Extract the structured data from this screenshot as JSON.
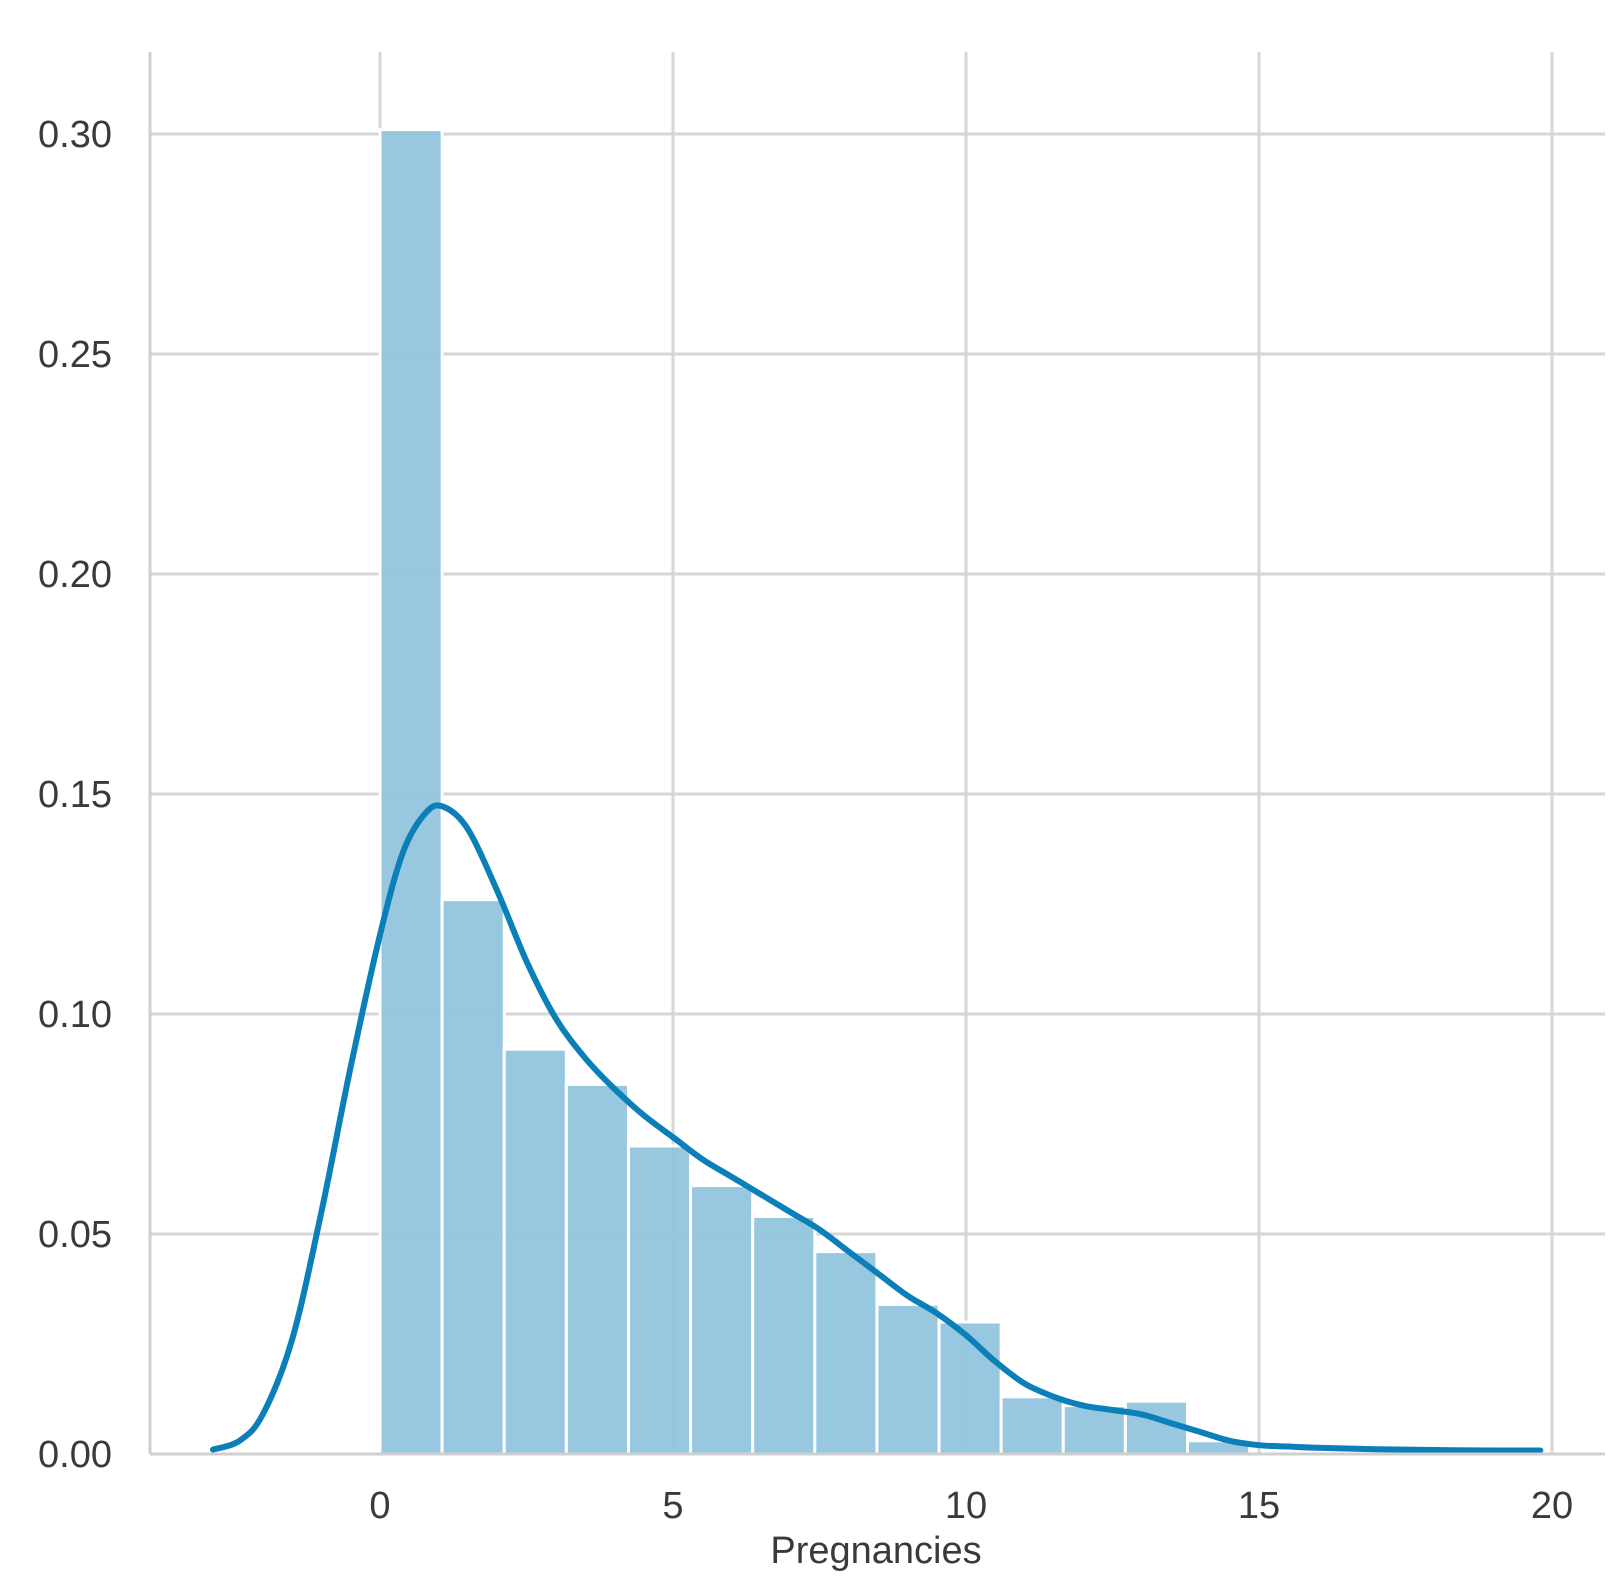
{
  "chart_data": {
    "type": "bar",
    "title": "",
    "xlabel": "Pregnancies",
    "ylabel": "",
    "xlim": [
      -3.0,
      20.3
    ],
    "ylim": [
      0.0,
      0.317
    ],
    "x_ticks": [
      0,
      5,
      10,
      15,
      20
    ],
    "x_tick_labels": [
      "0",
      "5",
      "10",
      "15",
      "20"
    ],
    "y_ticks": [
      0.0,
      0.05,
      0.1,
      0.15,
      0.2,
      0.25,
      0.3
    ],
    "y_tick_labels": [
      "0.00",
      "0.05",
      "0.10",
      "0.15",
      "0.20",
      "0.25",
      "0.30"
    ],
    "grid": true,
    "bar_color": "#92c5de",
    "line_color": "#0a7fb8",
    "series": [
      {
        "kind": "histogram",
        "bins": [
          {
            "x0": 0.0,
            "x1": 1.06,
            "value": 0.301
          },
          {
            "x0": 1.06,
            "x1": 2.12,
            "value": 0.126
          },
          {
            "x0": 2.12,
            "x1": 3.18,
            "value": 0.092
          },
          {
            "x0": 3.18,
            "x1": 4.24,
            "value": 0.084
          },
          {
            "x0": 4.24,
            "x1": 5.3,
            "value": 0.07
          },
          {
            "x0": 5.3,
            "x1": 6.36,
            "value": 0.061
          },
          {
            "x0": 6.36,
            "x1": 7.42,
            "value": 0.054
          },
          {
            "x0": 7.42,
            "x1": 8.48,
            "value": 0.046
          },
          {
            "x0": 8.48,
            "x1": 9.54,
            "value": 0.034
          },
          {
            "x0": 9.54,
            "x1": 10.6,
            "value": 0.03
          },
          {
            "x0": 10.6,
            "x1": 11.66,
            "value": 0.013
          },
          {
            "x0": 11.66,
            "x1": 12.72,
            "value": 0.011
          },
          {
            "x0": 12.72,
            "x1": 13.78,
            "value": 0.012
          },
          {
            "x0": 13.78,
            "x1": 14.84,
            "value": 0.003
          }
        ]
      },
      {
        "kind": "kde",
        "points": [
          [
            -2.85,
            0.001
          ],
          [
            -2.4,
            0.003
          ],
          [
            -2.0,
            0.009
          ],
          [
            -1.5,
            0.026
          ],
          [
            -1.0,
            0.055
          ],
          [
            -0.5,
            0.088
          ],
          [
            0.0,
            0.118
          ],
          [
            0.4,
            0.137
          ],
          [
            0.8,
            0.146
          ],
          [
            1.1,
            0.147
          ],
          [
            1.5,
            0.142
          ],
          [
            2.0,
            0.128
          ],
          [
            2.5,
            0.112
          ],
          [
            3.0,
            0.099
          ],
          [
            3.5,
            0.09
          ],
          [
            4.0,
            0.083
          ],
          [
            4.5,
            0.077
          ],
          [
            5.0,
            0.072
          ],
          [
            5.5,
            0.067
          ],
          [
            6.0,
            0.063
          ],
          [
            6.5,
            0.059
          ],
          [
            7.0,
            0.055
          ],
          [
            7.5,
            0.051
          ],
          [
            8.0,
            0.046
          ],
          [
            8.5,
            0.041
          ],
          [
            9.0,
            0.036
          ],
          [
            9.5,
            0.032
          ],
          [
            10.0,
            0.027
          ],
          [
            10.5,
            0.021
          ],
          [
            11.0,
            0.016
          ],
          [
            11.5,
            0.013
          ],
          [
            12.0,
            0.011
          ],
          [
            12.5,
            0.01
          ],
          [
            13.0,
            0.009
          ],
          [
            13.5,
            0.007
          ],
          [
            14.0,
            0.005
          ],
          [
            14.5,
            0.003
          ],
          [
            15.0,
            0.002
          ],
          [
            15.5,
            0.0017
          ],
          [
            16.0,
            0.0014
          ],
          [
            17.0,
            0.0011
          ],
          [
            18.0,
            0.0009
          ],
          [
            19.0,
            0.0008
          ],
          [
            19.8,
            0.0008
          ]
        ]
      }
    ]
  }
}
